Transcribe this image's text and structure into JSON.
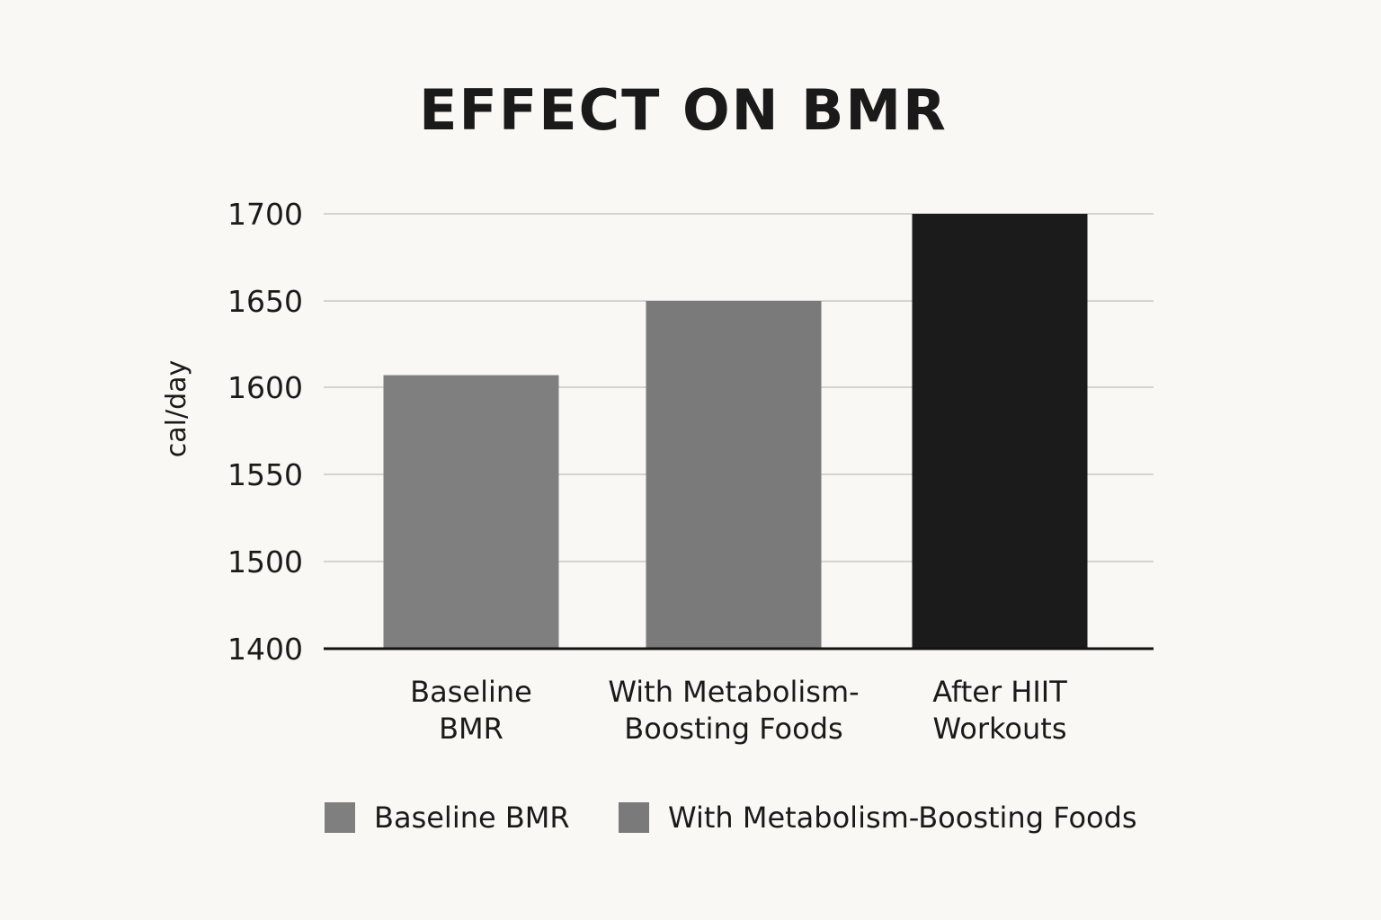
{
  "chart_data": {
    "type": "bar",
    "title": "EFFECT ON BMR",
    "ylabel": "cal/day",
    "xlabel": "",
    "ylim": [
      1400,
      1700
    ],
    "yticks": [
      1400,
      1500,
      1550,
      1600,
      1650,
      1700
    ],
    "categories": [
      [
        "Baseline",
        "BMR"
      ],
      [
        "With Metabolism-",
        "Boosting Foods"
      ],
      [
        "After HIIT",
        "Workouts"
      ]
    ],
    "values": [
      1607,
      1650,
      1700
    ],
    "bar_colors": [
      "#7f7f7f",
      "#7a7a7a",
      "#1b1b1b"
    ],
    "grid": true,
    "legend": {
      "position": "bottom",
      "items": [
        {
          "label": "Baseline BMR",
          "color": "#7f7f7f"
        },
        {
          "label": "With Metabolism-Boosting Foods",
          "color": "#7a7a7a"
        }
      ]
    }
  }
}
